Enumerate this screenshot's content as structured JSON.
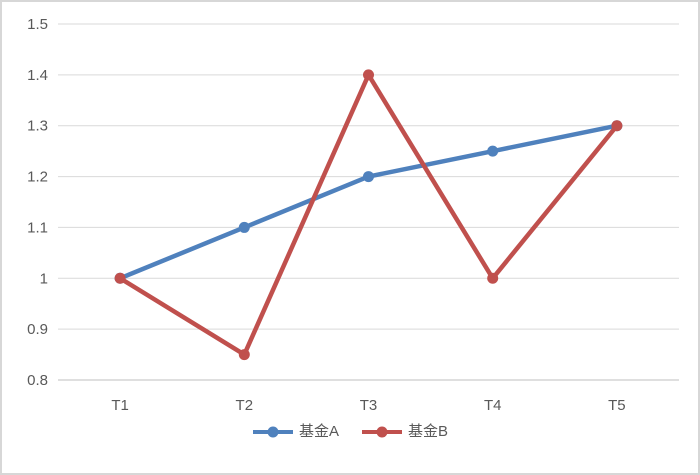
{
  "chart_data": {
    "type": "line",
    "title": "",
    "xlabel": "",
    "ylabel": "",
    "categories": [
      "T1",
      "T2",
      "T3",
      "T4",
      "T5"
    ],
    "series": [
      {
        "name": "基金A",
        "color": "#4F81BD",
        "values": [
          1.0,
          1.1,
          1.2,
          1.25,
          1.3
        ]
      },
      {
        "name": "基金B",
        "color": "#C0504D",
        "values": [
          1.0,
          0.85,
          1.4,
          1.0,
          1.3
        ]
      }
    ],
    "ylim": [
      0.8,
      1.5
    ],
    "ytick_labels": [
      "0.8",
      "0.9",
      "1",
      "1.1",
      "1.2",
      "1.3",
      "1.4",
      "1.5"
    ],
    "grid": true,
    "legend_position": "bottom-center",
    "colors": {
      "gridline": "#d9d9d9",
      "axis_line": "#bfbfbf",
      "tick_text": "#595959",
      "frame_border": "#d7d7d7",
      "background": "#ffffff"
    }
  }
}
